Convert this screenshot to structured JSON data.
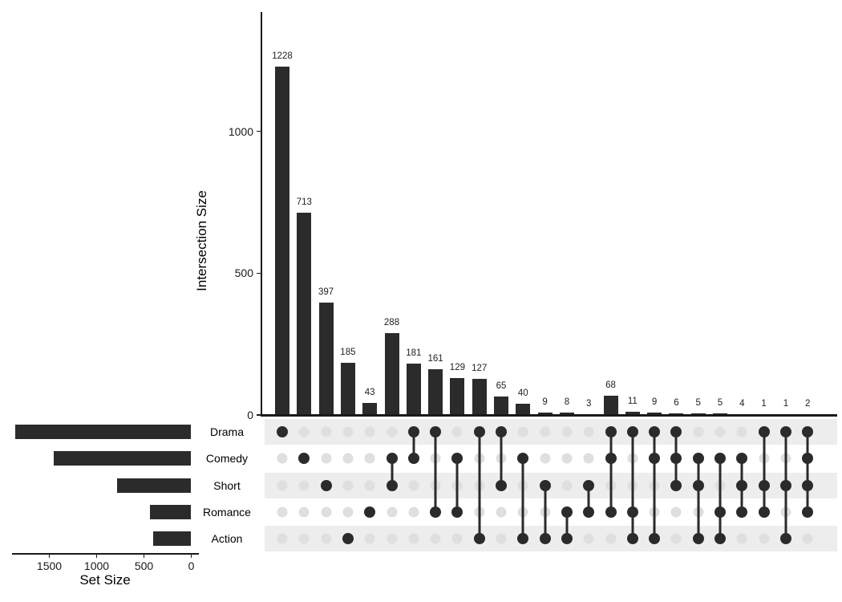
{
  "chart_data": {
    "type": "upset",
    "title": "",
    "sets": [
      {
        "name": "Drama",
        "size": 1860
      },
      {
        "name": "Comedy",
        "size": 1450
      },
      {
        "name": "Short",
        "size": 781
      },
      {
        "name": "Romance",
        "size": 435
      },
      {
        "name": "Action",
        "size": 400
      }
    ],
    "intersections": [
      {
        "sets": [
          "Drama"
        ],
        "size": 1228
      },
      {
        "sets": [
          "Comedy"
        ],
        "size": 713
      },
      {
        "sets": [
          "Short"
        ],
        "size": 397
      },
      {
        "sets": [
          "Action"
        ],
        "size": 185
      },
      {
        "sets": [
          "Romance"
        ],
        "size": 43
      },
      {
        "sets": [
          "Comedy",
          "Short"
        ],
        "size": 288
      },
      {
        "sets": [
          "Drama",
          "Comedy"
        ],
        "size": 181
      },
      {
        "sets": [
          "Drama",
          "Romance"
        ],
        "size": 161
      },
      {
        "sets": [
          "Comedy",
          "Romance"
        ],
        "size": 129
      },
      {
        "sets": [
          "Drama",
          "Action"
        ],
        "size": 127
      },
      {
        "sets": [
          "Drama",
          "Short"
        ],
        "size": 65
      },
      {
        "sets": [
          "Comedy",
          "Action"
        ],
        "size": 40
      },
      {
        "sets": [
          "Short",
          "Action"
        ],
        "size": 9
      },
      {
        "sets": [
          "Romance",
          "Action"
        ],
        "size": 8
      },
      {
        "sets": [
          "Short",
          "Romance"
        ],
        "size": 3
      },
      {
        "sets": [
          "Drama",
          "Comedy",
          "Romance"
        ],
        "size": 68
      },
      {
        "sets": [
          "Drama",
          "Romance",
          "Action"
        ],
        "size": 11
      },
      {
        "sets": [
          "Drama",
          "Comedy",
          "Action"
        ],
        "size": 9
      },
      {
        "sets": [
          "Drama",
          "Comedy",
          "Short"
        ],
        "size": 6
      },
      {
        "sets": [
          "Comedy",
          "Short",
          "Action"
        ],
        "size": 5
      },
      {
        "sets": [
          "Comedy",
          "Romance",
          "Action"
        ],
        "size": 5
      },
      {
        "sets": [
          "Comedy",
          "Short",
          "Romance"
        ],
        "size": 4
      },
      {
        "sets": [
          "Drama",
          "Short",
          "Romance"
        ],
        "size": 1
      },
      {
        "sets": [
          "Drama",
          "Short",
          "Action"
        ],
        "size": 1
      },
      {
        "sets": [
          "Drama",
          "Comedy",
          "Short",
          "Romance"
        ],
        "size": 2
      }
    ],
    "intersection_axis": {
      "label": "Intersection Size",
      "ticks": [
        0,
        500,
        1000
      ],
      "range": [
        0,
        1420
      ]
    },
    "set_axis": {
      "label": "Set Size",
      "ticks": [
        1500,
        1000,
        500,
        0
      ],
      "range": [
        0,
        1890
      ]
    },
    "colors": {
      "bar": "#2b2b2b",
      "active_dot": "#2b2b2b",
      "inactive_dot": "#dfdfdf",
      "stripe": "#ededed",
      "axis": "#1a1a1a"
    },
    "legend": "none",
    "grid": false
  }
}
